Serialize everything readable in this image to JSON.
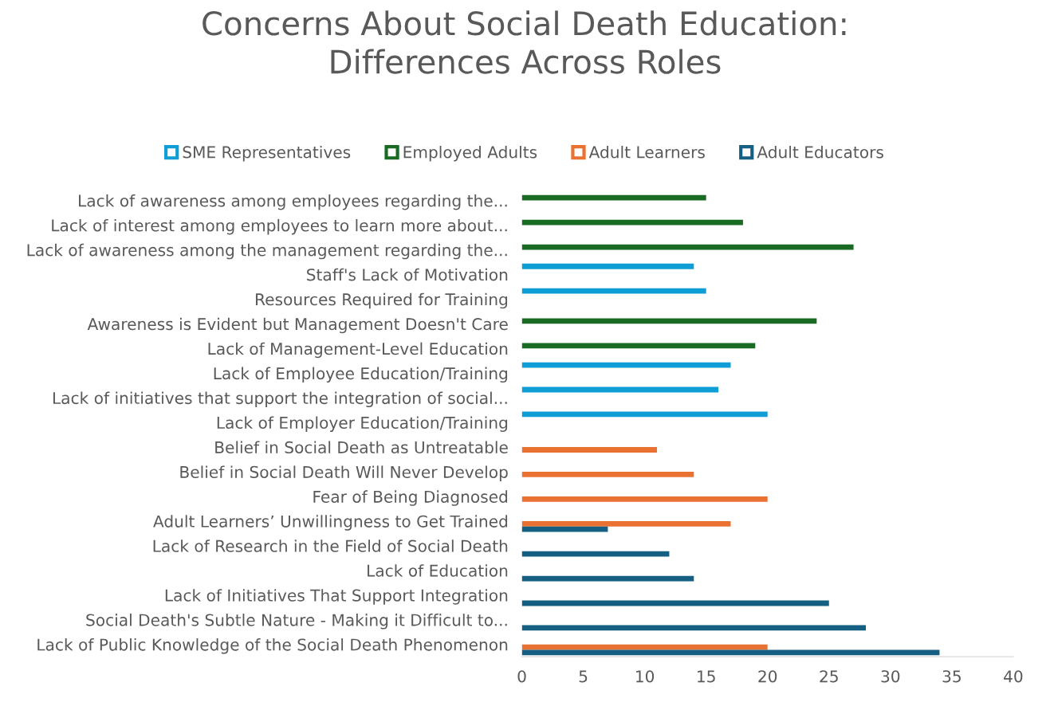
{
  "chart_data": {
    "type": "bar",
    "orientation": "horizontal",
    "title": "Concerns About Social Death Education:\nDifferences Across Roles",
    "categories": [
      "Lack of awareness among employees regarding the...",
      "Lack of interest among employees to learn more about...",
      "Lack of awareness among the management regarding the...",
      "Staff's Lack of Motivation",
      "Resources Required for Training",
      "Awareness is Evident but Management Doesn't Care",
      "Lack of Management-Level Education",
      "Lack of Employee Education/Training",
      "Lack of initiatives that support the integration of social...",
      "Lack of Employer Education/Training",
      "Belief in Social Death as Untreatable",
      "Belief in Social Death Will Never Develop",
      "Fear of Being Diagnosed",
      "Adult Learners’ Unwillingness to Get Trained",
      "Lack of Research in the Field of Social Death",
      "Lack of Education",
      "Lack of Initiatives That Support Integration",
      "Social Death's Subtle Nature - Making it Difficult to...",
      "Lack of Public Knowledge of the Social Death Phenomenon"
    ],
    "series": [
      {
        "name": "SME Representatives",
        "color": "#0e9ed5",
        "values": [
          null,
          null,
          null,
          14,
          15,
          null,
          null,
          17,
          16,
          20,
          null,
          null,
          null,
          null,
          null,
          null,
          null,
          null,
          null
        ]
      },
      {
        "name": "Employed Adults",
        "color": "#196b24",
        "values": [
          15,
          18,
          27,
          null,
          null,
          24,
          19,
          null,
          null,
          null,
          null,
          null,
          null,
          null,
          null,
          null,
          null,
          null,
          null
        ]
      },
      {
        "name": "Adult Learners",
        "color": "#e97132",
        "values": [
          null,
          null,
          null,
          null,
          null,
          null,
          null,
          null,
          null,
          null,
          11,
          14,
          20,
          17,
          null,
          null,
          null,
          null,
          20
        ]
      },
      {
        "name": "Adult Educators",
        "color": "#156082",
        "values": [
          null,
          null,
          null,
          null,
          null,
          null,
          null,
          null,
          null,
          null,
          null,
          null,
          null,
          7,
          12,
          14,
          25,
          28,
          34
        ]
      }
    ],
    "xlim": [
      0,
      40
    ],
    "xticks": [
      0,
      5,
      10,
      15,
      20,
      25,
      30,
      35,
      40
    ],
    "legend": "top",
    "grid": false
  }
}
